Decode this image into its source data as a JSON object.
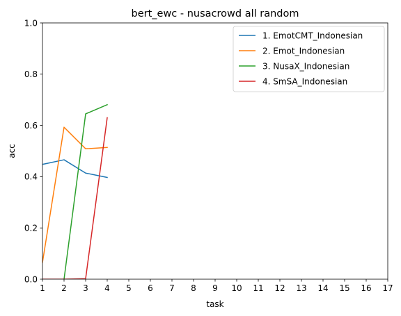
{
  "chart_data": {
    "type": "line",
    "title": "bert_ewc - nusacrowd all random",
    "xlabel": "task",
    "ylabel": "acc",
    "xlim": [
      1,
      17
    ],
    "ylim": [
      0,
      1
    ],
    "x_ticks": [
      "1",
      "2",
      "3",
      "4",
      "5",
      "6",
      "7",
      "8",
      "9",
      "10",
      "11",
      "12",
      "13",
      "14",
      "15",
      "16",
      "17"
    ],
    "y_ticks": [
      "0.0",
      "0.2",
      "0.4",
      "0.6",
      "0.8",
      "1.0"
    ],
    "legend_position": "top-right",
    "grid": false,
    "series": [
      {
        "name": "1. EmotCMT_Indonesian",
        "color": "#1f77b4",
        "x": [
          1,
          2,
          3,
          4
        ],
        "y": [
          0.448,
          0.466,
          0.414,
          0.397
        ]
      },
      {
        "name": "2. Emot_Indonesian",
        "color": "#ff7f0e",
        "x": [
          1,
          2,
          3,
          4
        ],
        "y": [
          0.065,
          0.593,
          0.509,
          0.514
        ]
      },
      {
        "name": "3. NusaX_Indonesian",
        "color": "#2ca02c",
        "x": [
          2,
          3,
          4
        ],
        "y": [
          0.0,
          0.645,
          0.681
        ]
      },
      {
        "name": "4. SmSA_Indonesian",
        "color": "#d62728",
        "x": [
          1,
          2,
          3,
          4
        ],
        "y": [
          0.0,
          0.0,
          0.002,
          0.63
        ]
      }
    ]
  }
}
